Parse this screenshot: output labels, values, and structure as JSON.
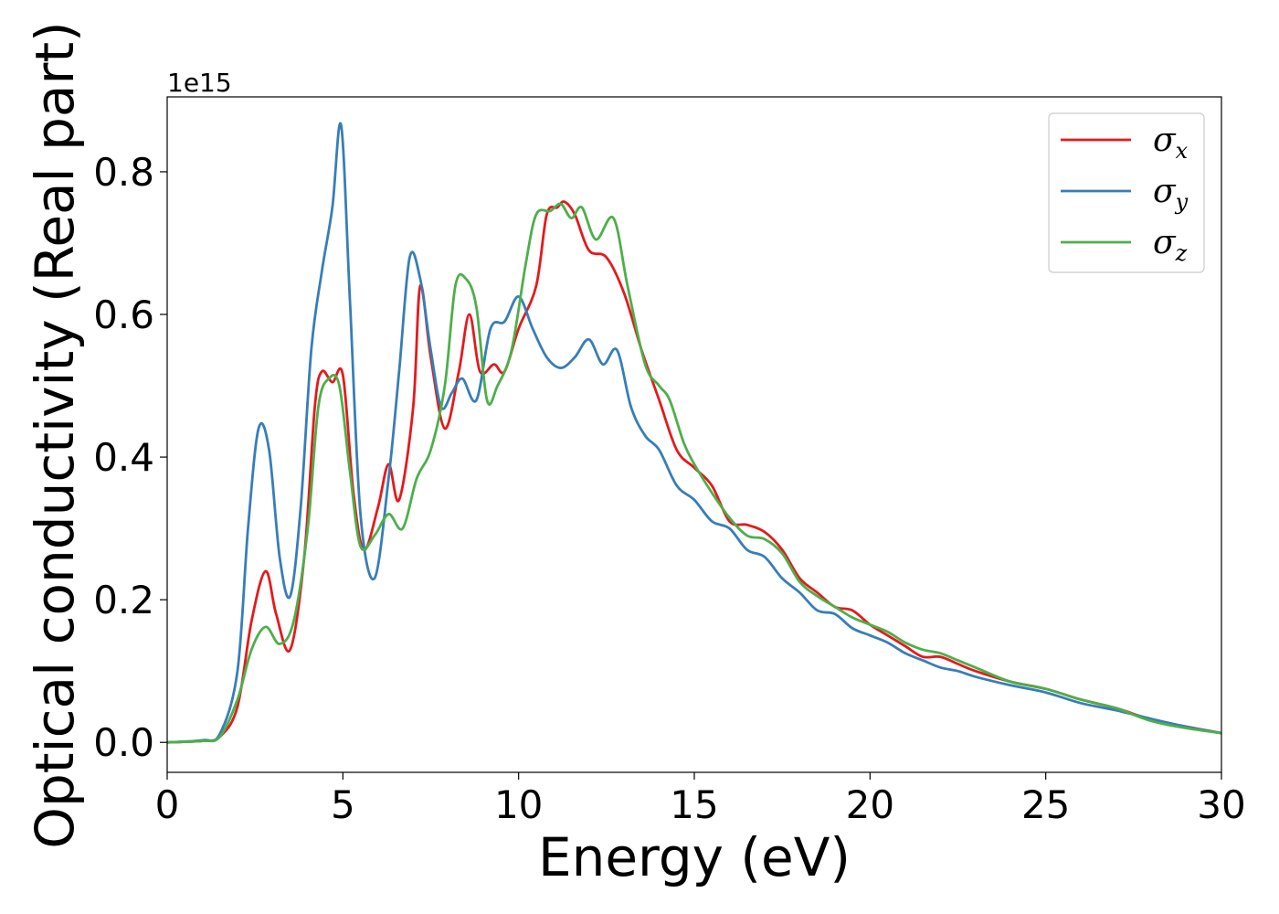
{
  "chart_data": {
    "type": "line",
    "xlabel": "Energy (eV)",
    "ylabel": "Optical conductivity (Real part)",
    "y_offset_text": "1e15",
    "xlim": [
      0,
      30
    ],
    "ylim": [
      -0.042,
      0.905
    ],
    "y_scale_factor": 1000000000000000.0,
    "x_ticks": [
      0,
      5,
      10,
      15,
      20,
      25,
      30
    ],
    "x_tick_labels": [
      "0",
      "5",
      "10",
      "15",
      "20",
      "25",
      "30"
    ],
    "y_ticks": [
      0.0,
      0.2,
      0.4,
      0.6,
      0.8
    ],
    "y_tick_labels": [
      "0.0",
      "0.2",
      "0.4",
      "0.6",
      "0.8"
    ],
    "grid": false,
    "legend_position": "top-right",
    "series": [
      {
        "name": "σx",
        "symbol": "σ",
        "sub": "x",
        "color": "#e41a1c",
        "points": [
          [
            0,
            0
          ],
          [
            1,
            0.002
          ],
          [
            1.5,
            0.008
          ],
          [
            2,
            0.05
          ],
          [
            2.4,
            0.17
          ],
          [
            2.8,
            0.24
          ],
          [
            3.1,
            0.18
          ],
          [
            3.5,
            0.13
          ],
          [
            3.9,
            0.26
          ],
          [
            4.2,
            0.47
          ],
          [
            4.4,
            0.52
          ],
          [
            4.7,
            0.505
          ],
          [
            5,
            0.515
          ],
          [
            5.3,
            0.35
          ],
          [
            5.6,
            0.27
          ],
          [
            6,
            0.33
          ],
          [
            6.3,
            0.39
          ],
          [
            6.6,
            0.34
          ],
          [
            7.0,
            0.47
          ],
          [
            7.2,
            0.64
          ],
          [
            7.5,
            0.54
          ],
          [
            7.9,
            0.44
          ],
          [
            8.3,
            0.52
          ],
          [
            8.6,
            0.6
          ],
          [
            8.9,
            0.52
          ],
          [
            9.3,
            0.53
          ],
          [
            9.6,
            0.52
          ],
          [
            10,
            0.58
          ],
          [
            10.5,
            0.64
          ],
          [
            10.8,
            0.74
          ],
          [
            11.1,
            0.75
          ],
          [
            11.3,
            0.758
          ],
          [
            11.6,
            0.74
          ],
          [
            12.0,
            0.69
          ],
          [
            12.5,
            0.68
          ],
          [
            13,
            0.63
          ],
          [
            13.5,
            0.55
          ],
          [
            14,
            0.48
          ],
          [
            14.5,
            0.41
          ],
          [
            15,
            0.385
          ],
          [
            15.5,
            0.36
          ],
          [
            16,
            0.31
          ],
          [
            16.5,
            0.305
          ],
          [
            17,
            0.295
          ],
          [
            17.5,
            0.27
          ],
          [
            18,
            0.23
          ],
          [
            18.5,
            0.21
          ],
          [
            19,
            0.19
          ],
          [
            19.5,
            0.185
          ],
          [
            20,
            0.165
          ],
          [
            20.5,
            0.15
          ],
          [
            21,
            0.135
          ],
          [
            21.5,
            0.12
          ],
          [
            22,
            0.12
          ],
          [
            22.5,
            0.11
          ],
          [
            23,
            0.1
          ],
          [
            24,
            0.085
          ],
          [
            25,
            0.075
          ],
          [
            26,
            0.06
          ],
          [
            27,
            0.048
          ],
          [
            28,
            0.032
          ],
          [
            29,
            0.022
          ],
          [
            30,
            0.013
          ]
        ]
      },
      {
        "name": "σy",
        "symbol": "σ",
        "sub": "y",
        "color": "#377eb8",
        "points": [
          [
            0,
            0
          ],
          [
            1,
            0.003
          ],
          [
            1.5,
            0.012
          ],
          [
            2,
            0.1
          ],
          [
            2.3,
            0.3
          ],
          [
            2.6,
            0.44
          ],
          [
            2.9,
            0.41
          ],
          [
            3.2,
            0.26
          ],
          [
            3.5,
            0.205
          ],
          [
            3.8,
            0.33
          ],
          [
            4.1,
            0.55
          ],
          [
            4.4,
            0.66
          ],
          [
            4.7,
            0.75
          ],
          [
            4.95,
            0.865
          ],
          [
            5.2,
            0.62
          ],
          [
            5.5,
            0.32
          ],
          [
            5.9,
            0.23
          ],
          [
            6.3,
            0.37
          ],
          [
            6.6,
            0.52
          ],
          [
            6.9,
            0.68
          ],
          [
            7.2,
            0.65
          ],
          [
            7.5,
            0.55
          ],
          [
            7.8,
            0.47
          ],
          [
            8.1,
            0.49
          ],
          [
            8.4,
            0.51
          ],
          [
            8.8,
            0.48
          ],
          [
            9.2,
            0.58
          ],
          [
            9.6,
            0.59
          ],
          [
            10.0,
            0.625
          ],
          [
            10.4,
            0.58
          ],
          [
            10.8,
            0.54
          ],
          [
            11.2,
            0.525
          ],
          [
            11.6,
            0.54
          ],
          [
            12.0,
            0.565
          ],
          [
            12.4,
            0.53
          ],
          [
            12.8,
            0.55
          ],
          [
            13.2,
            0.47
          ],
          [
            13.6,
            0.43
          ],
          [
            14,
            0.41
          ],
          [
            14.5,
            0.36
          ],
          [
            15,
            0.34
          ],
          [
            15.5,
            0.31
          ],
          [
            16,
            0.3
          ],
          [
            16.5,
            0.27
          ],
          [
            17,
            0.26
          ],
          [
            17.5,
            0.23
          ],
          [
            18,
            0.21
          ],
          [
            18.5,
            0.185
          ],
          [
            19,
            0.18
          ],
          [
            19.5,
            0.16
          ],
          [
            20,
            0.15
          ],
          [
            20.5,
            0.14
          ],
          [
            21,
            0.125
          ],
          [
            21.5,
            0.115
          ],
          [
            22,
            0.105
          ],
          [
            22.5,
            0.1
          ],
          [
            23,
            0.092
          ],
          [
            24,
            0.08
          ],
          [
            25,
            0.07
          ],
          [
            26,
            0.055
          ],
          [
            27,
            0.045
          ],
          [
            28,
            0.033
          ],
          [
            29,
            0.022
          ],
          [
            30,
            0.013
          ]
        ]
      },
      {
        "name": "σz",
        "symbol": "σ",
        "sub": "z",
        "color": "#4daf4a",
        "points": [
          [
            0,
            0
          ],
          [
            1,
            0.002
          ],
          [
            1.5,
            0.008
          ],
          [
            2,
            0.06
          ],
          [
            2.4,
            0.13
          ],
          [
            2.8,
            0.162
          ],
          [
            3.2,
            0.138
          ],
          [
            3.6,
            0.17
          ],
          [
            4.0,
            0.3
          ],
          [
            4.3,
            0.47
          ],
          [
            4.6,
            0.51
          ],
          [
            4.9,
            0.5
          ],
          [
            5.2,
            0.38
          ],
          [
            5.5,
            0.275
          ],
          [
            5.9,
            0.29
          ],
          [
            6.3,
            0.32
          ],
          [
            6.7,
            0.3
          ],
          [
            7.1,
            0.37
          ],
          [
            7.5,
            0.41
          ],
          [
            7.9,
            0.5
          ],
          [
            8.2,
            0.64
          ],
          [
            8.5,
            0.65
          ],
          [
            8.8,
            0.61
          ],
          [
            9.1,
            0.48
          ],
          [
            9.4,
            0.5
          ],
          [
            9.8,
            0.55
          ],
          [
            10.2,
            0.67
          ],
          [
            10.5,
            0.74
          ],
          [
            10.9,
            0.745
          ],
          [
            11.2,
            0.755
          ],
          [
            11.5,
            0.735
          ],
          [
            11.8,
            0.75
          ],
          [
            12.2,
            0.705
          ],
          [
            12.7,
            0.735
          ],
          [
            13.1,
            0.64
          ],
          [
            13.6,
            0.53
          ],
          [
            14.0,
            0.5
          ],
          [
            14.3,
            0.48
          ],
          [
            14.7,
            0.42
          ],
          [
            15,
            0.39
          ],
          [
            15.5,
            0.35
          ],
          [
            16,
            0.315
          ],
          [
            16.5,
            0.29
          ],
          [
            17,
            0.285
          ],
          [
            17.5,
            0.265
          ],
          [
            18,
            0.225
          ],
          [
            18.5,
            0.205
          ],
          [
            19,
            0.19
          ],
          [
            19.5,
            0.175
          ],
          [
            20,
            0.165
          ],
          [
            20.5,
            0.155
          ],
          [
            21,
            0.14
          ],
          [
            21.5,
            0.13
          ],
          [
            22,
            0.125
          ],
          [
            22.5,
            0.115
          ],
          [
            23,
            0.105
          ],
          [
            24,
            0.085
          ],
          [
            25,
            0.075
          ],
          [
            26,
            0.06
          ],
          [
            27,
            0.048
          ],
          [
            28,
            0.03
          ],
          [
            29,
            0.02
          ],
          [
            30,
            0.013
          ]
        ]
      }
    ]
  }
}
